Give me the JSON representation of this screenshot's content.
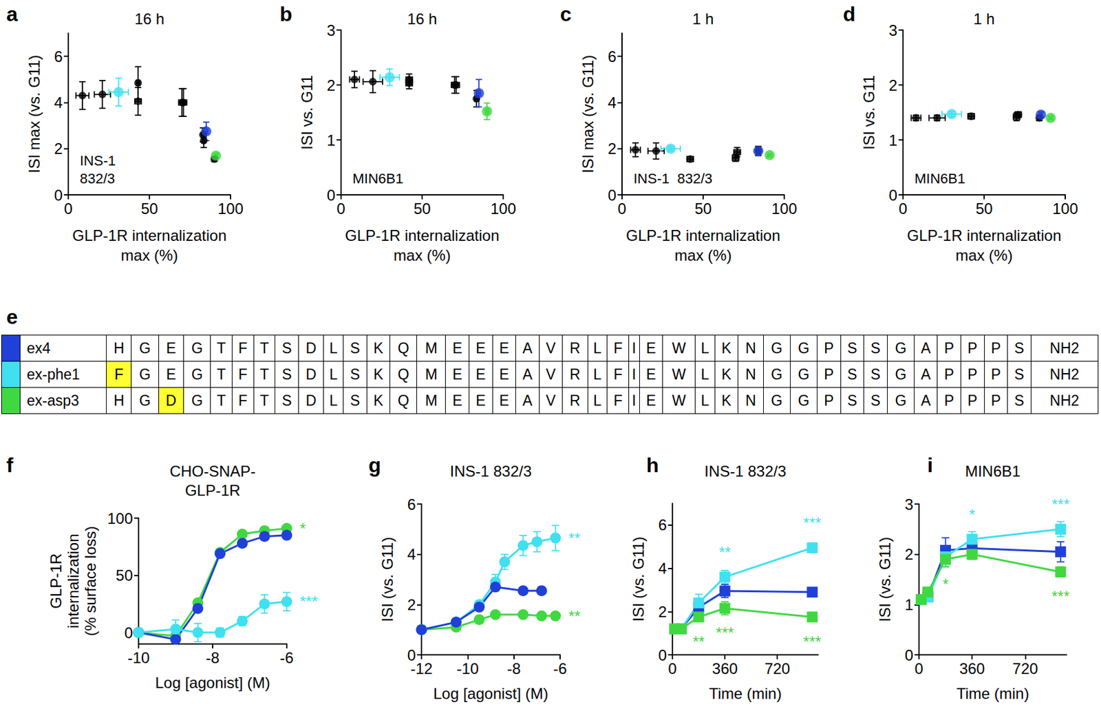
{
  "chart_data": [
    {
      "panel": "a",
      "type": "scatter",
      "title": "16 h",
      "annotation": "INS-1\n832/3",
      "xlabel": "GLP-1R internalization\nmax (%)",
      "ylabel": "ISI max (vs. G11)",
      "xlim": [
        0,
        100
      ],
      "xticks": [
        0,
        50,
        100
      ],
      "ylim": [
        0,
        7
      ],
      "yticks": [
        0,
        2,
        4,
        6
      ],
      "marker": "circle",
      "series": [
        {
          "color": "#000000",
          "x": [
            8.7,
            21,
            43,
            43,
            70,
            71,
            83.5,
            83,
            90
          ],
          "values": [
            4.3,
            4.35,
            4.85,
            4.05,
            4.0,
            4.0,
            2.35,
            2.6,
            1.55
          ],
          "xerr": [
            4,
            5,
            1,
            2,
            2,
            2,
            1,
            1,
            1
          ],
          "yerr": [
            0.6,
            0.6,
            0.7,
            0.6,
            0.6,
            0.6,
            0.3,
            0.3,
            0.1
          ]
        },
        {
          "color": "#40e0f0",
          "x": [
            31
          ],
          "values": [
            4.45
          ],
          "xerr": [
            6
          ],
          "yerr": [
            0.6
          ]
        },
        {
          "color": "#2040d8",
          "x": [
            85
          ],
          "values": [
            2.75
          ],
          "xerr": [
            1
          ],
          "yerr": [
            0.4
          ]
        },
        {
          "color": "#40d840",
          "x": [
            91
          ],
          "values": [
            1.7
          ],
          "xerr": [
            1
          ],
          "yerr": [
            0.1
          ]
        }
      ]
    },
    {
      "panel": "b",
      "type": "scatter",
      "title": "16 h",
      "annotation": "MIN6B1",
      "xlabel": "GLP-1R internalization\nmax (%)",
      "ylabel": "ISI vs. G11",
      "xlim": [
        0,
        100
      ],
      "xticks": [
        0,
        50,
        100
      ],
      "ylim": [
        0,
        3
      ],
      "yticks": [
        0,
        1,
        2,
        3
      ],
      "marker": "circle",
      "series": [
        {
          "color": "#000000",
          "x": [
            8.3,
            19.6,
            42,
            42,
            70,
            71,
            83.5
          ],
          "values": [
            2.1,
            2.06,
            2.1,
            2.03,
            2.0,
            2.0,
            1.75
          ],
          "xerr": [
            3,
            6,
            2,
            2,
            2,
            2,
            1
          ],
          "yerr": [
            0.15,
            0.2,
            0.1,
            0.1,
            0.15,
            0.15,
            0.15
          ]
        },
        {
          "color": "#40e0f0",
          "x": [
            30
          ],
          "values": [
            2.14
          ],
          "xerr": [
            6
          ],
          "yerr": [
            0.15
          ]
        },
        {
          "color": "#2040d8",
          "x": [
            85
          ],
          "values": [
            1.85
          ],
          "xerr": [
            1
          ],
          "yerr": [
            0.25
          ]
        },
        {
          "color": "#40d840",
          "x": [
            90
          ],
          "values": [
            1.52
          ],
          "xerr": [
            1
          ],
          "yerr": [
            0.15
          ]
        }
      ]
    },
    {
      "panel": "c",
      "type": "scatter",
      "title": "1 h",
      "annotation": "INS-1  832/3",
      "xlabel": "GLP-1R internalization\nmax (%)",
      "ylabel": "ISI max (vs. G11)",
      "xlim": [
        0,
        100
      ],
      "xticks": [
        0,
        50,
        100
      ],
      "ylim": [
        0,
        7
      ],
      "yticks": [
        0,
        2,
        4,
        6
      ],
      "marker": "circle",
      "series": [
        {
          "color": "#000000",
          "x": [
            8.3,
            21,
            42,
            70,
            71,
            84
          ],
          "values": [
            1.95,
            1.9,
            1.55,
            1.6,
            1.85,
            1.9
          ],
          "xerr": [
            3,
            5,
            2,
            2,
            2,
            1
          ],
          "yerr": [
            0.3,
            0.35,
            0.1,
            0.15,
            0.2,
            0.2
          ]
        },
        {
          "color": "#40e0f0",
          "x": [
            30
          ],
          "values": [
            2.0
          ],
          "xerr": [
            6
          ],
          "yerr": [
            0.1
          ]
        },
        {
          "color": "#2040d8",
          "x": [
            84
          ],
          "values": [
            1.9
          ],
          "xerr": [
            1
          ],
          "yerr": [
            0.15
          ]
        },
        {
          "color": "#40d840",
          "x": [
            91
          ],
          "values": [
            1.72
          ],
          "xerr": [
            1
          ],
          "yerr": [
            0.05
          ]
        }
      ]
    },
    {
      "panel": "d",
      "type": "scatter",
      "title": "1 h",
      "annotation": "MIN6B1",
      "xlabel": "GLP-1R internalization\nmax (%)",
      "ylabel": "ISI vs. G11",
      "xlim": [
        0,
        100
      ],
      "xticks": [
        0,
        50,
        100
      ],
      "ylim": [
        0,
        3
      ],
      "yticks": [
        0,
        1,
        2,
        3
      ],
      "marker": "circle",
      "series": [
        {
          "color": "#000000",
          "x": [
            8,
            21,
            42,
            70,
            71,
            84
          ],
          "values": [
            1.4,
            1.4,
            1.43,
            1.42,
            1.46,
            1.4
          ],
          "xerr": [
            3,
            5,
            2,
            2,
            2,
            1
          ],
          "yerr": [
            0.05,
            0.05,
            0.05,
            0.07,
            0.05,
            0.05
          ]
        },
        {
          "color": "#40e0f0",
          "x": [
            30
          ],
          "values": [
            1.47
          ],
          "xerr": [
            6
          ],
          "yerr": [
            0.05
          ]
        },
        {
          "color": "#2040d8",
          "x": [
            85
          ],
          "values": [
            1.46
          ],
          "xerr": [
            1
          ],
          "yerr": [
            0.05
          ]
        },
        {
          "color": "#40d840",
          "x": [
            91
          ],
          "values": [
            1.4
          ],
          "xerr": [
            1
          ],
          "yerr": [
            0.03
          ]
        }
      ]
    },
    {
      "panel": "f",
      "type": "line",
      "title": "CHO-SNAP-\nGLP-1R",
      "xlabel": "Log [agonist] (M)",
      "ylabel": "GLP-1R\ninternalization\n(% surface loss)",
      "xlim": [
        -10,
        -6
      ],
      "xticks": [
        -10,
        -8,
        -6
      ],
      "ylim": [
        -10,
        100
      ],
      "yticks": [
        0,
        50,
        100
      ],
      "marker": "circle",
      "series": [
        {
          "color": "#40d840",
          "x": [
            -10,
            -9,
            -8.4,
            -7.8,
            -7.2,
            -6.6,
            -6
          ],
          "values": [
            0,
            -3,
            26,
            70,
            86,
            89,
            91
          ],
          "errors": [
            2,
            2,
            2,
            2,
            2,
            2,
            2
          ],
          "sig": [
            null,
            null,
            null,
            null,
            null,
            null,
            "*"
          ]
        },
        {
          "color": "#2040d8",
          "x": [
            -10,
            -9,
            -8.4,
            -7.8,
            -7.2,
            -6.6,
            -6
          ],
          "values": [
            0,
            -6,
            21,
            69,
            78,
            84,
            85
          ],
          "errors": [
            2,
            3,
            3,
            3,
            3,
            3,
            3
          ],
          "sig": [
            null,
            null,
            null,
            null,
            null,
            null,
            null
          ]
        },
        {
          "color": "#40e0f0",
          "x": [
            -10,
            -9,
            -8.4,
            -7.8,
            -7.2,
            -6.6,
            -6
          ],
          "values": [
            0,
            3,
            0,
            0,
            10,
            25,
            27
          ],
          "errors": [
            2,
            8,
            8,
            4,
            4,
            8,
            8
          ],
          "sig": [
            null,
            null,
            null,
            null,
            null,
            null,
            "***"
          ]
        }
      ]
    },
    {
      "panel": "g",
      "type": "line",
      "title": "INS-1 832/3",
      "xlabel": "Log [agonist] (M)",
      "ylabel": "ISI (vs. G11)",
      "xlim": [
        -12,
        -6
      ],
      "xticks": [
        -12,
        -10,
        -8,
        -6
      ],
      "ylim": [
        0,
        6
      ],
      "yticks": [
        0,
        2,
        4,
        6
      ],
      "marker": "circle",
      "series": [
        {
          "color": "#40e0f0",
          "x": [
            -12,
            -10.5,
            -9.5,
            -8.8,
            -8.4,
            -7.6,
            -7,
            -6.2
          ],
          "values": [
            1.0,
            1.3,
            2.0,
            2.9,
            3.7,
            4.35,
            4.5,
            4.65
          ],
          "errors": [
            0.05,
            0.1,
            0.15,
            0.3,
            0.3,
            0.4,
            0.4,
            0.5
          ],
          "sig": [
            null,
            null,
            null,
            null,
            null,
            null,
            null,
            "**"
          ]
        },
        {
          "color": "#40d840",
          "x": [
            -12,
            -10.5,
            -9.5,
            -8.8,
            -7.6,
            -6.8,
            -6.2
          ],
          "values": [
            1.0,
            1.1,
            1.4,
            1.6,
            1.6,
            1.55,
            1.55
          ],
          "errors": [
            0.05,
            0.05,
            0.05,
            0.05,
            0.05,
            0.05,
            0.05
          ],
          "sig": [
            null,
            null,
            null,
            null,
            null,
            null,
            "**"
          ]
        },
        {
          "color": "#2040d8",
          "x": [
            -12,
            -10.5,
            -9.5,
            -8.8,
            -7.6,
            -6.8
          ],
          "values": [
            1.0,
            1.3,
            1.9,
            2.7,
            2.55,
            2.55
          ],
          "errors": [
            0.05,
            0.1,
            0.1,
            0.15,
            0.1,
            0.1
          ],
          "sig": [
            null,
            null,
            null,
            null,
            null,
            null
          ]
        }
      ]
    },
    {
      "panel": "h",
      "type": "line",
      "title": "INS-1 832/3",
      "xlabel": "Time (min)",
      "ylabel": "ISI (vs. G11)",
      "xlim": [
        0,
        1000
      ],
      "xticks": [
        0,
        360,
        720
      ],
      "ylim": [
        0,
        7
      ],
      "yticks": [
        0,
        2,
        4,
        6
      ],
      "marker": "square",
      "series": [
        {
          "color": "#2040d8",
          "x": [
            15,
            60,
            180,
            360,
            960
          ],
          "values": [
            1.2,
            1.2,
            2.2,
            2.95,
            2.9
          ],
          "errors": [
            0.1,
            0.1,
            0.3,
            0.3,
            0.2
          ],
          "sig": [
            null,
            null,
            null,
            null,
            null
          ]
        },
        {
          "color": "#40e0f0",
          "x": [
            15,
            60,
            180,
            360,
            960
          ],
          "values": [
            1.2,
            1.2,
            2.4,
            3.6,
            4.95
          ],
          "errors": [
            0.1,
            0.1,
            0.4,
            0.3,
            0.15
          ],
          "sig": [
            null,
            null,
            null,
            "**",
            "***"
          ]
        },
        {
          "color": "#40d840",
          "x": [
            15,
            60,
            180,
            360,
            960
          ],
          "values": [
            1.2,
            1.2,
            1.75,
            2.15,
            1.75
          ],
          "errors": [
            0.1,
            0.1,
            0.2,
            0.3,
            0.15
          ],
          "sig": [
            null,
            null,
            "**",
            "***",
            "***"
          ]
        }
      ]
    },
    {
      "panel": "i",
      "type": "line",
      "title": "MIN6B1",
      "xlabel": "Time (min)",
      "ylabel": "ISI (vs. G11)",
      "xlim": [
        0,
        1000
      ],
      "xticks": [
        0,
        360,
        720
      ],
      "ylim": [
        0,
        3
      ],
      "yticks": [
        0,
        1,
        2,
        3
      ],
      "marker": "square",
      "series": [
        {
          "color": "#2040d8",
          "x": [
            15,
            60,
            180,
            360,
            960
          ],
          "values": [
            1.1,
            1.15,
            2.08,
            2.12,
            2.05
          ],
          "errors": [
            0.05,
            0.05,
            0.25,
            0.12,
            0.2
          ],
          "sig": [
            null,
            null,
            null,
            null,
            null
          ]
        },
        {
          "color": "#40e0f0",
          "x": [
            15,
            60,
            180,
            360,
            960
          ],
          "values": [
            1.1,
            1.15,
            1.95,
            2.3,
            2.5
          ],
          "errors": [
            0.05,
            0.05,
            0.2,
            0.15,
            0.15
          ],
          "sig": [
            null,
            null,
            null,
            "*",
            "***"
          ]
        },
        {
          "color": "#40d840",
          "x": [
            15,
            60,
            180,
            360,
            960
          ],
          "values": [
            1.1,
            1.25,
            1.9,
            2.0,
            1.65
          ],
          "errors": [
            0.05,
            0.05,
            0.15,
            0.1,
            0.1
          ],
          "sig": [
            null,
            null,
            "*",
            null,
            "***"
          ]
        }
      ]
    }
  ],
  "sequence_table": {
    "panel": "e",
    "rows": [
      {
        "name": "ex4",
        "color": "#2040d8",
        "highlight": [],
        "residues": [
          "H",
          "G",
          "E",
          "G",
          "T",
          "F",
          "T",
          "S",
          "D",
          "L",
          "S",
          "K",
          "Q",
          "M",
          "E",
          "E",
          "E",
          "A",
          "V",
          "R",
          "L",
          "F",
          "I",
          "E",
          "W",
          "L",
          "K",
          "N",
          "G",
          "G",
          "P",
          "S",
          "S",
          "G",
          "A",
          "P",
          "P",
          "P",
          "S",
          "NH2"
        ]
      },
      {
        "name": "ex-phe1",
        "color": "#40e0f0",
        "highlight": [
          0
        ],
        "residues": [
          "F",
          "G",
          "E",
          "G",
          "T",
          "F",
          "T",
          "S",
          "D",
          "L",
          "S",
          "K",
          "Q",
          "M",
          "E",
          "E",
          "E",
          "A",
          "V",
          "R",
          "L",
          "F",
          "I",
          "E",
          "W",
          "L",
          "K",
          "N",
          "G",
          "G",
          "P",
          "S",
          "S",
          "G",
          "A",
          "P",
          "P",
          "P",
          "S",
          "NH2"
        ]
      },
      {
        "name": "ex-asp3",
        "color": "#40d840",
        "highlight": [
          2
        ],
        "residues": [
          "H",
          "G",
          "D",
          "G",
          "T",
          "F",
          "T",
          "S",
          "D",
          "L",
          "S",
          "K",
          "Q",
          "M",
          "E",
          "E",
          "E",
          "A",
          "V",
          "R",
          "L",
          "F",
          "I",
          "E",
          "W",
          "L",
          "K",
          "N",
          "G",
          "G",
          "P",
          "S",
          "S",
          "G",
          "A",
          "P",
          "P",
          "P",
          "S",
          "NH2"
        ]
      }
    ]
  }
}
